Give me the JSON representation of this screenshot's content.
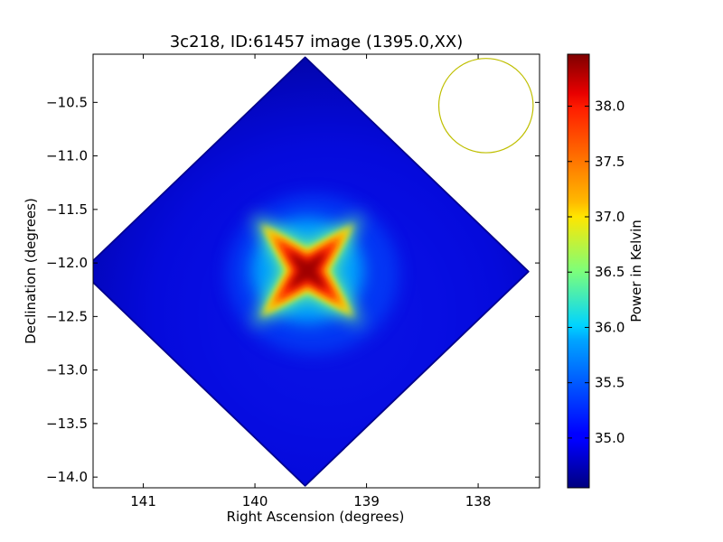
{
  "chart_data": {
    "type": "heatmap",
    "title": "3c218, ID:61457 image (1395.0,XX)",
    "xlabel": "Right Ascension (degrees)",
    "ylabel": "Declination (degrees)",
    "xlim": [
      141.45,
      137.45
    ],
    "ylim": [
      -14.1,
      -10.05
    ],
    "x_ticks": [
      141,
      140,
      139,
      138
    ],
    "y_ticks": [
      -10.5,
      -11.0,
      -11.5,
      -12.0,
      -12.5,
      -13.0,
      -13.5,
      -14.0
    ],
    "x_tick_labels": [
      "141",
      "140",
      "139",
      "138"
    ],
    "y_tick_labels": [
      "−10.5",
      "−11.0",
      "−11.5",
      "−12.0",
      "−12.5",
      "−13.0",
      "−13.5",
      "−14.0"
    ],
    "image": {
      "center_ra": 139.55,
      "center_dec": -12.08,
      "half_extent_deg": 2.0,
      "shape": "diamond",
      "peak_ra": 139.53,
      "peak_dec": -12.07,
      "peak_value": 38.4,
      "background_value": 34.6
    },
    "beam_circle": {
      "ra": 137.93,
      "dec": -10.53,
      "radius_deg": 0.37,
      "color": "#bfbf00"
    },
    "colorbar": {
      "label": "Power in Kelvin",
      "colormap": "jet",
      "vmin": 34.55,
      "vmax": 38.47,
      "ticks": [
        35.0,
        35.5,
        36.0,
        36.5,
        37.0,
        37.5,
        38.0
      ],
      "tick_labels": [
        "35.0",
        "35.5",
        "36.0",
        "36.5",
        "37.0",
        "37.5",
        "38.0"
      ]
    },
    "grid": false
  }
}
